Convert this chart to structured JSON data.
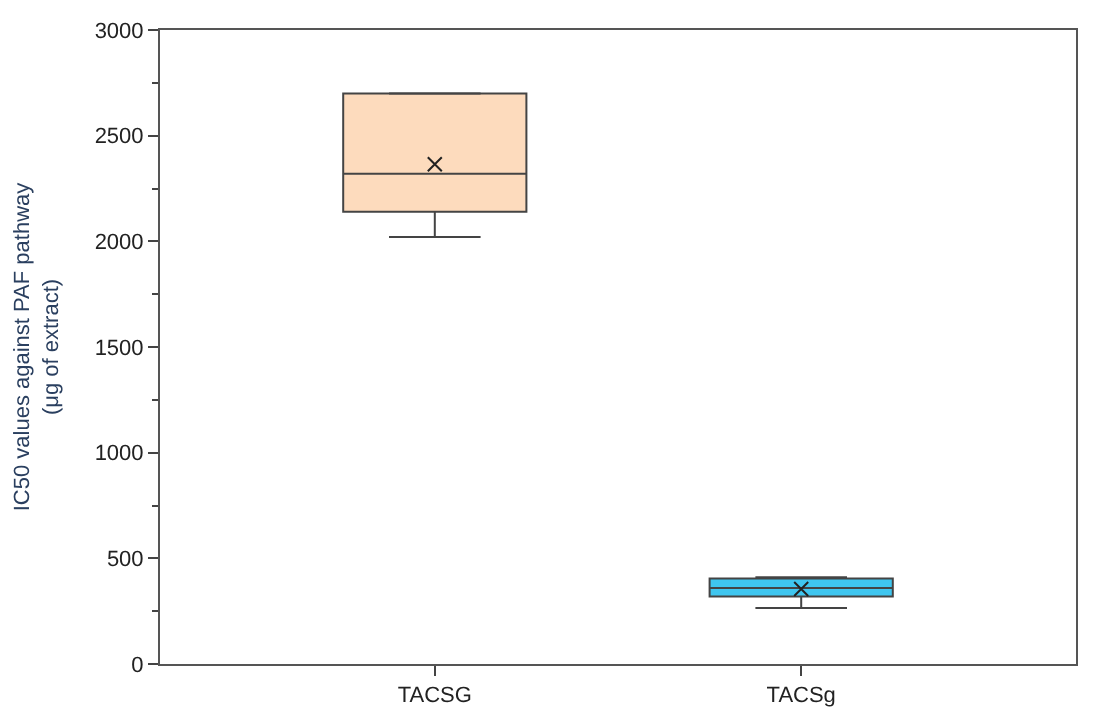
{
  "chart_data": {
    "type": "box",
    "ylabel": "IC50 values against PAF pathway\n(μg of extract)",
    "categories": [
      "TACSG",
      "TACSg"
    ],
    "boxes": [
      {
        "low": 2020,
        "q1": 2140,
        "median": 2320,
        "q3": 2700,
        "high": 2700,
        "mean": 2365
      },
      {
        "low": 265,
        "q1": 320,
        "median": 360,
        "q3": 405,
        "high": 410,
        "mean": 355
      }
    ],
    "colors": [
      "#fddbbd",
      "#3fc6ef"
    ],
    "ylim": [
      0,
      3000
    ],
    "yticks": [
      0,
      500,
      1000,
      1500,
      2000,
      2500,
      3000
    ],
    "marker": "cross"
  }
}
